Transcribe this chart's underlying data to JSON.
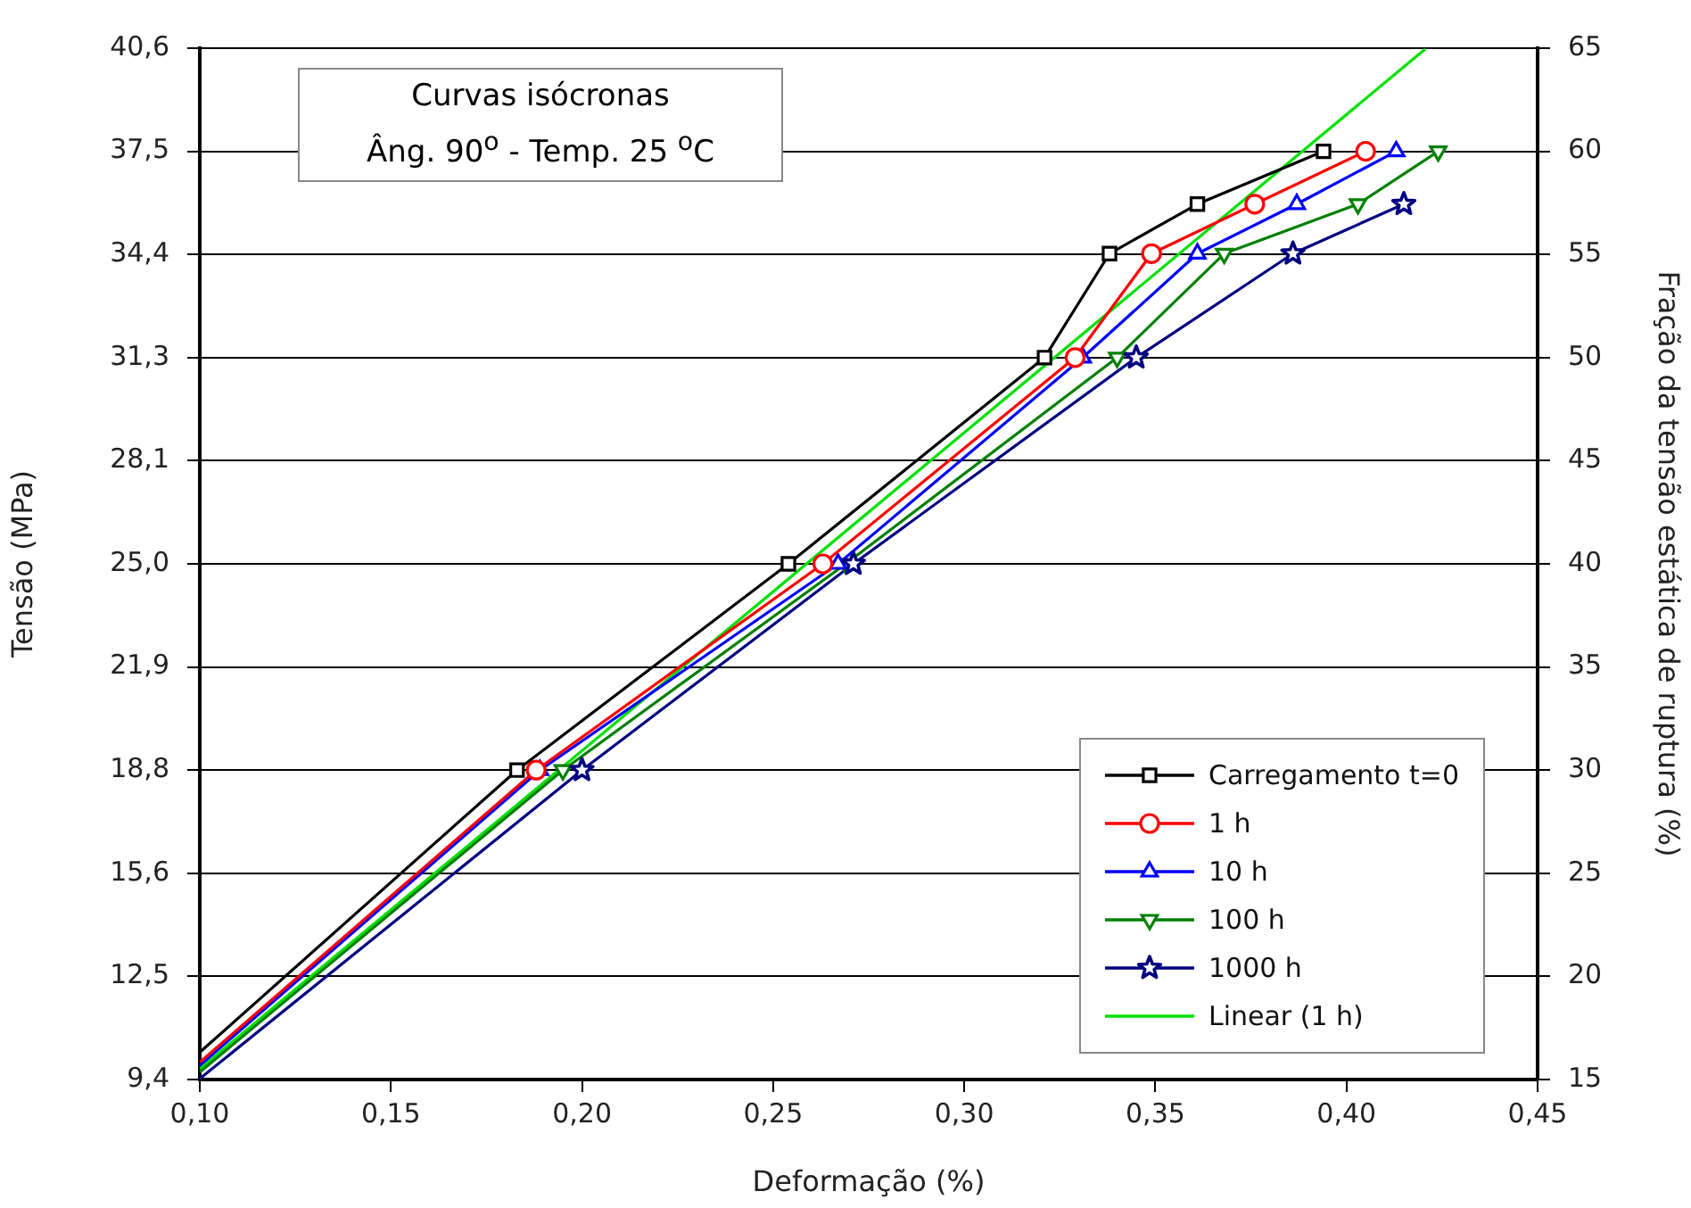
{
  "chart_data": {
    "type": "line",
    "xlabel": "Deformação (%)",
    "ylabel": "Tensão (MPa)",
    "y2label": "Fração da tensão estática de ruptura (%)",
    "annotations": [
      "Curvas isócronas",
      "Âng. 90$^{o}$ - Temp. 25 $^{o}$C"
    ],
    "xlim": [
      0.1,
      0.45
    ],
    "xticks": [
      {
        "value": 0.1,
        "label": "0,10"
      },
      {
        "value": 0.15,
        "label": "0,15"
      },
      {
        "value": 0.2,
        "label": "0,20"
      },
      {
        "value": 0.25,
        "label": "0,25"
      },
      {
        "value": 0.3,
        "label": "0,30"
      },
      {
        "value": 0.35,
        "label": "0,35"
      },
      {
        "value": 0.4,
        "label": "0,40"
      },
      {
        "value": 0.45,
        "label": "0,45"
      }
    ],
    "ylim": [
      9.375,
      40.625
    ],
    "yticks": [
      {
        "value": 9.375,
        "label": "9,4"
      },
      {
        "value": 12.5,
        "label": "12,5"
      },
      {
        "value": 15.625,
        "label": "15,6"
      },
      {
        "value": 18.75,
        "label": "18,8"
      },
      {
        "value": 21.875,
        "label": "21,9"
      },
      {
        "value": 25,
        "label": "25,0"
      },
      {
        "value": 28.125,
        "label": "28,1"
      },
      {
        "value": 31.25,
        "label": "31,3"
      },
      {
        "value": 34.375,
        "label": "34,4"
      },
      {
        "value": 37.5,
        "label": "37,5"
      },
      {
        "value": 40.625,
        "label": "40,6"
      }
    ],
    "y2lim": [
      15,
      65
    ],
    "y2ticks": [
      15,
      20,
      25,
      30,
      35,
      40,
      45,
      50,
      55,
      60,
      65
    ],
    "grid": "y",
    "legend": "bottom right",
    "series": [
      {
        "name": "Carregamento t=0",
        "color": "#000000",
        "marker": "square",
        "x": [
          0.1,
          0.183,
          0.254,
          0.321,
          0.338,
          0.361,
          0.394
        ],
        "values": [
          10.2,
          18.75,
          25,
          31.25,
          34.4,
          35.9,
          37.5
        ]
      },
      {
        "name": "1 h",
        "color": "#ff0000",
        "marker": "circle",
        "x": [
          0.1,
          0.188,
          0.263,
          0.329,
          0.349,
          0.376,
          0.405
        ],
        "values": [
          9.9,
          18.75,
          25,
          31.25,
          34.4,
          35.9,
          37.5
        ]
      },
      {
        "name": "10 h",
        "color": "#0000ff",
        "marker": "triangle",
        "x": [
          0.1,
          0.189,
          0.267,
          0.331,
          0.361,
          0.387,
          0.413
        ],
        "values": [
          9.8,
          18.75,
          25,
          31.25,
          34.4,
          35.9,
          37.5
        ]
      },
      {
        "name": "100 h",
        "color": "#008000",
        "marker": "triangle-down",
        "x": [
          0.1,
          0.195,
          0.269,
          0.34,
          0.368,
          0.403,
          0.424
        ],
        "values": [
          9.6,
          18.75,
          25,
          31.25,
          34.4,
          35.9,
          37.5
        ]
      },
      {
        "name": "1000 h",
        "color": "#000080",
        "marker": "star",
        "x": [
          0.1,
          0.2,
          0.271,
          0.345,
          0.386,
          0.415
        ],
        "values": [
          9.4,
          18.75,
          25,
          31.25,
          34.4,
          35.9
        ]
      },
      {
        "name": "Linear (1 h)",
        "color": "#00e000",
        "marker": "none",
        "x": [
          0.1,
          0.4206
        ],
        "values": [
          9.7,
          40.6
        ]
      }
    ]
  }
}
